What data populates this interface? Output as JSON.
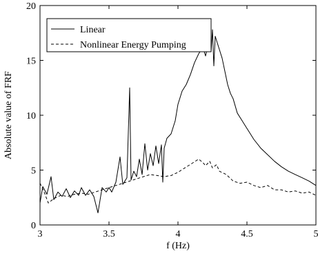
{
  "chart_data": {
    "type": "line",
    "xlabel": "f (Hz)",
    "ylabel": "Absolute value of FRF",
    "xlim": [
      3,
      5
    ],
    "ylim": [
      0,
      20
    ],
    "xticks": [
      "3",
      "3.5",
      "4",
      "4.5",
      "5"
    ],
    "yticks": [
      "0",
      "5",
      "10",
      "15",
      "20"
    ],
    "grid": false,
    "legend_position": "top-left",
    "series": [
      {
        "name": "Linear",
        "style": "solid",
        "color": "#000000",
        "x": [
          3.0,
          3.02,
          3.05,
          3.08,
          3.1,
          3.13,
          3.16,
          3.19,
          3.22,
          3.25,
          3.28,
          3.3,
          3.33,
          3.36,
          3.39,
          3.42,
          3.45,
          3.48,
          3.5,
          3.52,
          3.55,
          3.58,
          3.6,
          3.63,
          3.65,
          3.66,
          3.68,
          3.7,
          3.72,
          3.74,
          3.76,
          3.78,
          3.8,
          3.82,
          3.84,
          3.86,
          3.88,
          3.89,
          3.9,
          3.92,
          3.95,
          3.98,
          4.0,
          4.03,
          4.06,
          4.09,
          4.12,
          4.15,
          4.18,
          4.2,
          4.22,
          4.24,
          4.25,
          4.26,
          4.27,
          4.28,
          4.3,
          4.32,
          4.34,
          4.36,
          4.38,
          4.4,
          4.43,
          4.46,
          4.5,
          4.55,
          4.6,
          4.65,
          4.7,
          4.75,
          4.8,
          4.85,
          4.9,
          4.95,
          5.0
        ],
        "values": [
          2.0,
          3.5,
          2.8,
          4.4,
          2.3,
          3.0,
          2.6,
          3.3,
          2.5,
          3.1,
          2.7,
          3.4,
          2.7,
          3.2,
          2.6,
          1.1,
          3.4,
          3.0,
          3.4,
          3.0,
          3.9,
          6.2,
          3.7,
          4.3,
          12.5,
          4.1,
          4.9,
          4.4,
          6.0,
          4.6,
          7.4,
          5.0,
          6.5,
          5.4,
          7.2,
          5.6,
          7.3,
          3.9,
          7.0,
          7.9,
          8.3,
          9.5,
          11.0,
          12.2,
          12.8,
          13.7,
          14.8,
          15.6,
          16.2,
          15.4,
          16.6,
          15.8,
          17.8,
          14.5,
          17.2,
          16.8,
          16.0,
          15.2,
          14.0,
          12.8,
          12.0,
          11.5,
          10.2,
          9.6,
          8.8,
          7.8,
          7.0,
          6.4,
          5.8,
          5.3,
          4.9,
          4.6,
          4.3,
          4.0,
          3.6
        ]
      },
      {
        "name": "Nonlinear Energy Pumping",
        "style": "dashed",
        "color": "#000000",
        "x": [
          3.0,
          3.03,
          3.06,
          3.1,
          3.15,
          3.2,
          3.25,
          3.3,
          3.35,
          3.4,
          3.45,
          3.5,
          3.55,
          3.6,
          3.65,
          3.7,
          3.75,
          3.8,
          3.85,
          3.9,
          3.95,
          4.0,
          4.05,
          4.1,
          4.15,
          4.18,
          4.2,
          4.23,
          4.25,
          4.28,
          4.3,
          4.35,
          4.4,
          4.45,
          4.5,
          4.55,
          4.6,
          4.65,
          4.7,
          4.75,
          4.8,
          4.85,
          4.9,
          4.95,
          5.0
        ],
        "values": [
          3.8,
          3.0,
          2.0,
          2.4,
          2.7,
          2.6,
          2.8,
          2.9,
          2.8,
          3.0,
          3.2,
          3.4,
          3.6,
          3.8,
          4.0,
          4.2,
          4.4,
          4.6,
          4.5,
          4.4,
          4.5,
          4.8,
          5.2,
          5.6,
          6.0,
          5.7,
          5.4,
          5.8,
          5.2,
          5.5,
          4.9,
          4.6,
          4.0,
          3.8,
          3.9,
          3.6,
          3.4,
          3.6,
          3.2,
          3.2,
          3.0,
          3.1,
          2.9,
          3.0,
          2.7
        ]
      }
    ]
  }
}
